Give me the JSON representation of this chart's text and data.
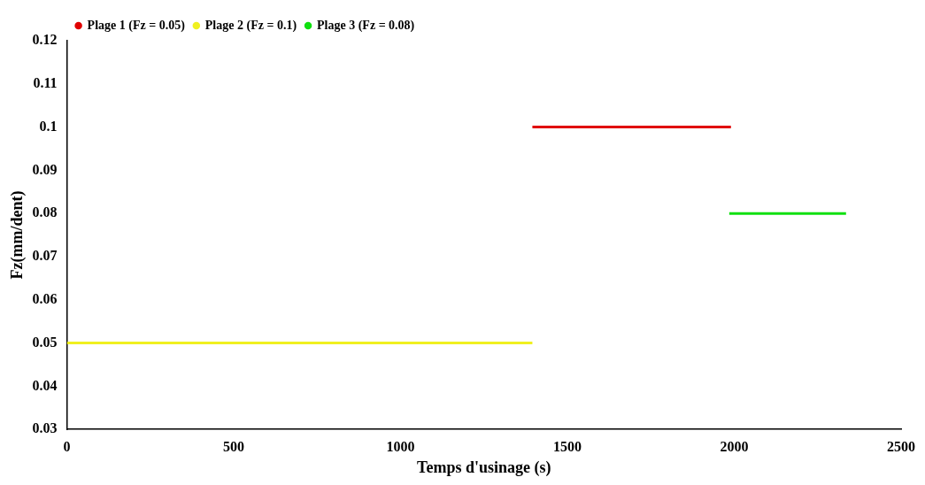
{
  "chart_data": {
    "type": "line",
    "xlabel": "Temps d'usinage (s)",
    "ylabel": "Fz(mm/dent)",
    "series": [
      {
        "name": "Plage 1 (Fz = 0.05)",
        "color": "#e00000",
        "x": [
          1395,
          1990
        ],
        "values": [
          0.1,
          0.1
        ]
      },
      {
        "name": "Plage 2 (Fz = 0.1)",
        "color": "#f0f020",
        "x": [
          0,
          1395
        ],
        "values": [
          0.05,
          0.05
        ]
      },
      {
        "name": "Plage 3 (Fz = 0.08)",
        "color": "#10e010",
        "x": [
          1985,
          2335
        ],
        "values": [
          0.08,
          0.08
        ]
      }
    ],
    "xlim": [
      0,
      2500
    ],
    "xticks": [
      0,
      500,
      1000,
      1500,
      2000,
      2500
    ],
    "ylim": [
      0.03,
      0.12
    ],
    "yticks": [
      0.03,
      0.04,
      0.05,
      0.06,
      0.07,
      0.08,
      0.09,
      0.1,
      0.11,
      0.12
    ],
    "grid": false,
    "legend": "top left",
    "marker": "none",
    "line_style": "solid"
  }
}
